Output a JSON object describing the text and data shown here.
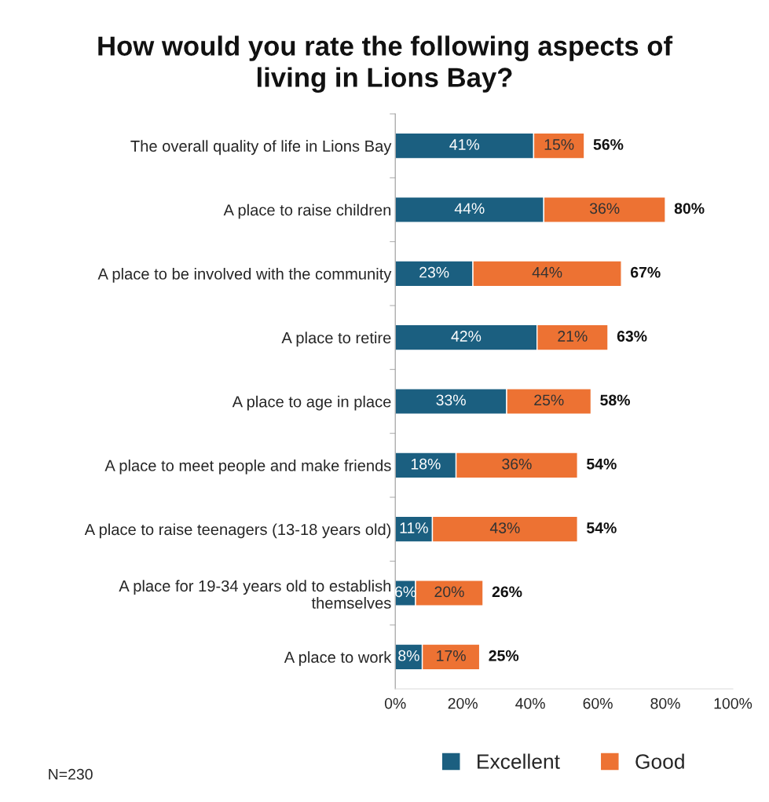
{
  "chart_data": {
    "type": "bar",
    "orientation": "horizontal",
    "stacked": true,
    "title": "How would you rate the following aspects of living in Lions Bay?",
    "categories": [
      "The overall quality of life in Lions Bay",
      "A place to raise children",
      "A place to be involved with the community",
      "A place to retire",
      "A place to age in place",
      "A place to meet people and make friends",
      "A place to raise teenagers (13-18 years old)",
      "A place for 19-34 years old to establish themselves",
      "A place to work"
    ],
    "series": [
      {
        "name": "Excellent",
        "color": "#1b5f80",
        "values": [
          41,
          44,
          23,
          42,
          33,
          18,
          11,
          6,
          8
        ],
        "value_labels": [
          "41%",
          "44%",
          "23%",
          "42%",
          "33%",
          "18%",
          "11%",
          "6%",
          "8%"
        ]
      },
      {
        "name": "Good",
        "color": "#ed7233",
        "values": [
          15,
          36,
          44,
          21,
          25,
          36,
          43,
          20,
          17
        ],
        "value_labels": [
          "15%",
          "36%",
          "44%",
          "21%",
          "25%",
          "36%",
          "43%",
          "20%",
          "17%"
        ]
      }
    ],
    "totals": [
      "56%",
      "80%",
      "67%",
      "63%",
      "58%",
      "54%",
      "54%",
      "26%",
      "25%"
    ],
    "xlim": [
      0,
      100
    ],
    "xticks": [
      {
        "value": 0,
        "label": "0%"
      },
      {
        "value": 20,
        "label": "20%"
      },
      {
        "value": 40,
        "label": "40%"
      },
      {
        "value": 60,
        "label": "60%"
      },
      {
        "value": 80,
        "label": "80%"
      },
      {
        "value": 100,
        "label": "100%"
      }
    ],
    "grid": false,
    "legend": "bottom",
    "annotations": [
      "N=230"
    ]
  }
}
